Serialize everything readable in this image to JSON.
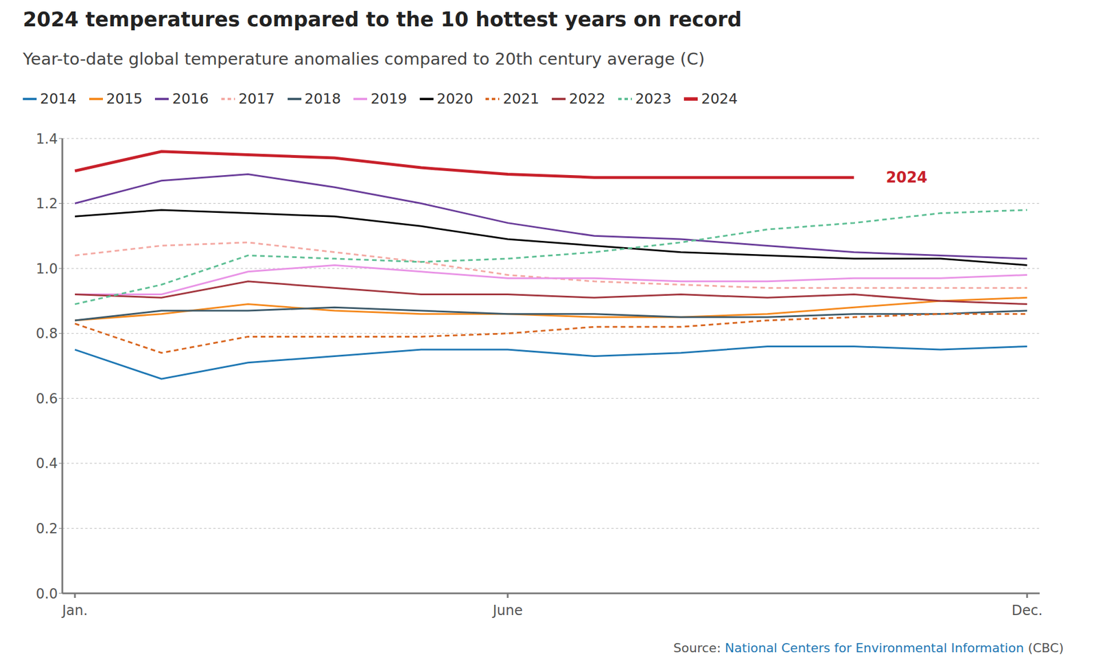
{
  "chart_data": {
    "type": "line",
    "title": "2024 temperatures compared to the 10 hottest years on record",
    "subtitle": "Year-to-date global temperature anomalies compared to 20th century average (C)",
    "source": {
      "label": "Source:",
      "link": "National Centers for Environmental Information",
      "note": "(CBC)"
    },
    "annotation": {
      "text": "2024"
    },
    "categories": [
      "Jan.",
      null,
      null,
      null,
      null,
      "June",
      null,
      null,
      null,
      null,
      null,
      "Dec."
    ],
    "ylim": [
      0,
      1.4
    ],
    "yticks": [
      {
        "value": 0,
        "label": "0.0"
      },
      0.2,
      0.4,
      0.6,
      0.8,
      {
        "value": 1,
        "label": "1.0"
      },
      1.2,
      1.4
    ],
    "grid": true,
    "legend": "top",
    "series": [
      {
        "name": "2014",
        "color": "#1f78b4",
        "line_style": "solid",
        "values": [
          0.75,
          0.66,
          0.71,
          0.73,
          0.75,
          0.75,
          0.73,
          0.74,
          0.76,
          0.76,
          0.75,
          0.76
        ]
      },
      {
        "name": "2015",
        "color": "#f58a1f",
        "line_style": "solid",
        "values": [
          0.84,
          0.86,
          0.89,
          0.87,
          0.86,
          0.86,
          0.85,
          0.85,
          0.86,
          0.88,
          0.9,
          0.91
        ]
      },
      {
        "name": "2016",
        "color": "#6a3d9a",
        "line_style": "solid",
        "values": [
          1.2,
          1.27,
          1.29,
          1.25,
          1.2,
          1.14,
          1.1,
          1.09,
          1.07,
          1.05,
          1.04,
          1.03
        ]
      },
      {
        "name": "2017",
        "color": "#f4a9a3",
        "line_style": "dashed",
        "values": [
          1.04,
          1.07,
          1.08,
          1.05,
          1.02,
          0.98,
          0.96,
          0.95,
          0.94,
          0.94,
          0.94,
          0.94
        ]
      },
      {
        "name": "2018",
        "color": "#3d5a6a",
        "line_style": "solid",
        "values": [
          0.84,
          0.87,
          0.87,
          0.88,
          0.87,
          0.86,
          0.86,
          0.85,
          0.85,
          0.86,
          0.86,
          0.87
        ]
      },
      {
        "name": "2019",
        "color": "#e994e6",
        "line_style": "solid",
        "values": [
          0.92,
          0.92,
          0.99,
          1.01,
          0.99,
          0.97,
          0.97,
          0.96,
          0.96,
          0.97,
          0.97,
          0.98
        ]
      },
      {
        "name": "2020",
        "color": "#000000",
        "line_style": "solid",
        "values": [
          1.16,
          1.18,
          1.17,
          1.16,
          1.13,
          1.09,
          1.07,
          1.05,
          1.04,
          1.03,
          1.03,
          1.01
        ]
      },
      {
        "name": "2021",
        "color": "#d9661f",
        "line_style": "dashed",
        "values": [
          0.83,
          0.74,
          0.79,
          0.79,
          0.79,
          0.8,
          0.82,
          0.82,
          0.84,
          0.85,
          0.86,
          0.86
        ]
      },
      {
        "name": "2022",
        "color": "#a3373f",
        "line_style": "solid",
        "values": [
          0.92,
          0.91,
          0.96,
          0.94,
          0.92,
          0.92,
          0.91,
          0.92,
          0.91,
          0.92,
          0.9,
          0.89
        ]
      },
      {
        "name": "2023",
        "color": "#5dbf94",
        "line_style": "dashed",
        "values": [
          0.89,
          0.95,
          1.04,
          1.03,
          1.02,
          1.03,
          1.05,
          1.08,
          1.12,
          1.14,
          1.17,
          1.18
        ]
      },
      {
        "name": "2024",
        "color": "#c8202a",
        "line_style": "solid",
        "values": [
          1.3,
          1.36,
          1.35,
          1.34,
          1.31,
          1.29,
          1.28,
          1.28,
          1.28,
          1.28,
          null,
          null
        ]
      }
    ]
  }
}
